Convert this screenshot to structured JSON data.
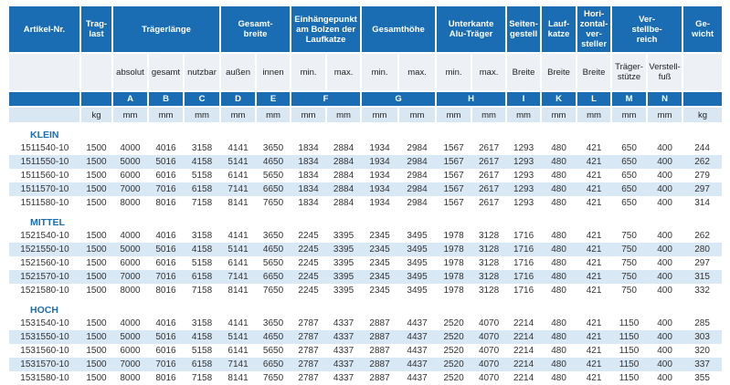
{
  "page": {
    "background": "#ffffff"
  },
  "table": {
    "colors": {
      "header_blue": "#1a6db3",
      "stripe_blue": "#d9e8f5",
      "subheader_bg": "#edf1f6",
      "units_bg": "#d9e7f3",
      "header_text": "#ffffff",
      "data_text": "#333333",
      "group_label_text": "#1a6db3"
    },
    "header_groups": [
      {
        "label": "Artikel-Nr.",
        "colspan": 1
      },
      {
        "label": "Trag-\nlast",
        "colspan": 1
      },
      {
        "label": "Trägerlänge",
        "colspan": 3
      },
      {
        "label": "Gesamt-\nbreite",
        "colspan": 2
      },
      {
        "label": "Einhängepunkt\nam Bolzen der\nLaufkatze",
        "colspan": 2
      },
      {
        "label": "Gesamthöhe",
        "colspan": 2
      },
      {
        "label": "Unterkante\nAlu-Träger",
        "colspan": 2
      },
      {
        "label": "Seiten-\ngestell",
        "colspan": 1
      },
      {
        "label": "Lauf-\nkatze",
        "colspan": 1
      },
      {
        "label": "Hori-\nzontal-\nver-\nsteller",
        "colspan": 1
      },
      {
        "label": "Ver-\nstellbe-\nreich",
        "colspan": 2
      },
      {
        "label": "Ge-\nwicht",
        "colspan": 1
      }
    ],
    "sub_headers": [
      "",
      "",
      "absolut",
      "gesamt",
      "nutzbar",
      "außen",
      "innen",
      "min.",
      "max.",
      "min.",
      "max.",
      "min.",
      "max.",
      "Breite",
      "Breite",
      "Breite",
      "Träger-\nstütze",
      "Verstell-\nfuß",
      ""
    ],
    "letter_cells": [
      {
        "label": "",
        "colspan": 1
      },
      {
        "label": "",
        "colspan": 1
      },
      {
        "label": "A",
        "colspan": 1
      },
      {
        "label": "B",
        "colspan": 1
      },
      {
        "label": "C",
        "colspan": 1
      },
      {
        "label": "D",
        "colspan": 1
      },
      {
        "label": "E",
        "colspan": 1
      },
      {
        "label": "F",
        "colspan": 2
      },
      {
        "label": "G",
        "colspan": 2
      },
      {
        "label": "H",
        "colspan": 2
      },
      {
        "label": "I",
        "colspan": 1
      },
      {
        "label": "K",
        "colspan": 1
      },
      {
        "label": "L",
        "colspan": 1
      },
      {
        "label": "M",
        "colspan": 1
      },
      {
        "label": "N",
        "colspan": 1
      },
      {
        "label": "",
        "colspan": 1
      }
    ],
    "units": [
      "",
      "kg",
      "mm",
      "mm",
      "mm",
      "mm",
      "mm",
      "mm",
      "mm",
      "mm",
      "mm",
      "mm",
      "mm",
      "mm",
      "mm",
      "mm",
      "mm",
      "mm",
      "kg"
    ],
    "groups": [
      {
        "name": "KLEIN",
        "rows": [
          [
            "1511540-10",
            1500,
            4000,
            4016,
            3158,
            4141,
            3650,
            1834,
            2884,
            1934,
            2984,
            1567,
            2617,
            1293,
            480,
            421,
            650,
            400,
            244
          ],
          [
            "1511550-10",
            1500,
            5000,
            5016,
            4158,
            5141,
            4650,
            1834,
            2884,
            1934,
            2984,
            1567,
            2617,
            1293,
            480,
            421,
            650,
            400,
            262
          ],
          [
            "1511560-10",
            1500,
            6000,
            6016,
            5158,
            6141,
            5650,
            1834,
            2884,
            1934,
            2984,
            1567,
            2617,
            1293,
            480,
            421,
            650,
            400,
            279
          ],
          [
            "1511570-10",
            1500,
            7000,
            7016,
            6158,
            7141,
            6650,
            1834,
            2884,
            1934,
            2984,
            1567,
            2617,
            1293,
            480,
            421,
            650,
            400,
            297
          ],
          [
            "1511580-10",
            1500,
            8000,
            8016,
            7158,
            8141,
            7650,
            1834,
            2884,
            1934,
            2984,
            1567,
            2617,
            1293,
            480,
            421,
            650,
            400,
            314
          ]
        ]
      },
      {
        "name": "MITTEL",
        "rows": [
          [
            "1521540-10",
            1500,
            4000,
            4016,
            3158,
            4141,
            3650,
            2245,
            3395,
            2345,
            3495,
            1978,
            3128,
            1716,
            480,
            421,
            750,
            400,
            262
          ],
          [
            "1521550-10",
            1500,
            5000,
            5016,
            4158,
            5141,
            4650,
            2245,
            3395,
            2345,
            3495,
            1978,
            3128,
            1716,
            480,
            421,
            750,
            400,
            280
          ],
          [
            "1521560-10",
            1500,
            6000,
            6016,
            5158,
            6141,
            5650,
            2245,
            3395,
            2345,
            3495,
            1978,
            3128,
            1716,
            480,
            421,
            750,
            400,
            297
          ],
          [
            "1521570-10",
            1500,
            7000,
            7016,
            6158,
            7141,
            6650,
            2245,
            3395,
            2345,
            3495,
            1978,
            3128,
            1716,
            480,
            421,
            750,
            400,
            315
          ],
          [
            "1521580-10",
            1500,
            8000,
            8016,
            7158,
            8141,
            7650,
            2245,
            3395,
            2345,
            3495,
            1978,
            3128,
            1716,
            480,
            421,
            750,
            400,
            332
          ]
        ]
      },
      {
        "name": "HOCH",
        "rows": [
          [
            "1531540-10",
            1500,
            4000,
            4016,
            3158,
            4141,
            3650,
            2787,
            4337,
            2887,
            4437,
            2520,
            4070,
            2214,
            480,
            421,
            1150,
            400,
            285
          ],
          [
            "1531550-10",
            1500,
            5000,
            5016,
            4158,
            5141,
            4650,
            2787,
            4337,
            2887,
            4437,
            2520,
            4070,
            2214,
            480,
            421,
            1150,
            400,
            303
          ],
          [
            "1531560-10",
            1500,
            6000,
            6016,
            5158,
            6141,
            5650,
            2787,
            4337,
            2887,
            4437,
            2520,
            4070,
            2214,
            480,
            421,
            1150,
            400,
            320
          ],
          [
            "1531570-10",
            1500,
            7000,
            7016,
            6158,
            7141,
            6650,
            2787,
            4337,
            2887,
            4437,
            2520,
            4070,
            2214,
            480,
            421,
            1150,
            400,
            337
          ],
          [
            "1531580-10",
            1500,
            8000,
            8016,
            7158,
            8141,
            7650,
            2787,
            4337,
            2887,
            4437,
            2520,
            4070,
            2214,
            480,
            421,
            1150,
            400,
            355
          ]
        ]
      }
    ]
  }
}
